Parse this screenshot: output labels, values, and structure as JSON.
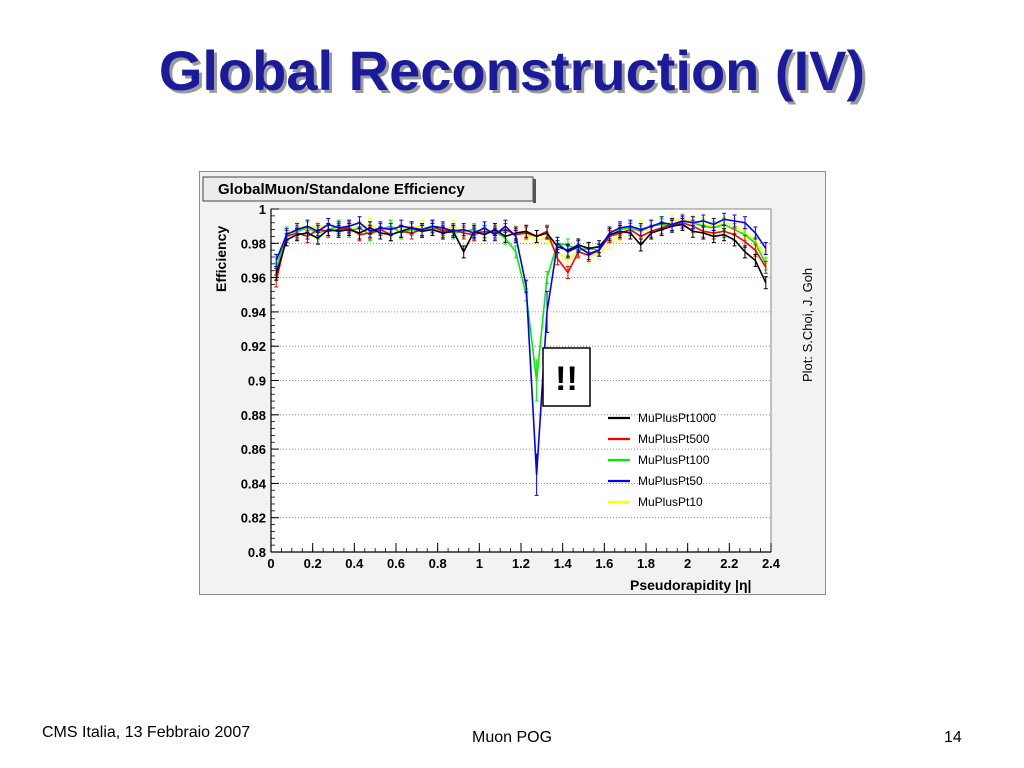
{
  "slide": {
    "title": "Global Reconstruction (IV)",
    "credit": "Plot: S.Choi, J. Goh",
    "footer_left": "CMS Italia, 13 Febbraio 2007",
    "footer_center": "Muon POG",
    "footer_right": "14",
    "annotation": "!!"
  },
  "chart_data": {
    "type": "line",
    "title": "GlobalMuon/Standalone Efficiency",
    "xlabel": "Pseudorapidity |η|",
    "ylabel": "Efficiency",
    "xlim": [
      0,
      2.4
    ],
    "ylim": [
      0.8,
      1.0
    ],
    "x_ticks": [
      "0",
      "0.2",
      "0.4",
      "0.6",
      "0.8",
      "1",
      "1.2",
      "1.4",
      "1.6",
      "1.8",
      "2",
      "2.2",
      "2.4"
    ],
    "y_ticks": [
      "0.8",
      "0.82",
      "0.84",
      "0.86",
      "0.88",
      "0.9",
      "0.92",
      "0.94",
      "0.96",
      "0.98",
      "1"
    ],
    "grid": "horizontal",
    "legend_position": "lower-right",
    "x": [
      0.025,
      0.075,
      0.125,
      0.175,
      0.225,
      0.275,
      0.325,
      0.375,
      0.425,
      0.475,
      0.525,
      0.575,
      0.625,
      0.675,
      0.725,
      0.775,
      0.825,
      0.875,
      0.925,
      0.975,
      1.025,
      1.075,
      1.125,
      1.175,
      1.225,
      1.275,
      1.325,
      1.375,
      1.425,
      1.475,
      1.525,
      1.575,
      1.625,
      1.675,
      1.725,
      1.775,
      1.825,
      1.875,
      1.925,
      1.975,
      2.025,
      2.075,
      2.125,
      2.175,
      2.225,
      2.275,
      2.325,
      2.375
    ],
    "series": [
      {
        "name": "MuPlusPt1000",
        "color": "#000000",
        "values": [
          0.962,
          0.982,
          0.985,
          0.986,
          0.983,
          0.988,
          0.987,
          0.988,
          0.986,
          0.989,
          0.986,
          0.985,
          0.987,
          0.989,
          0.987,
          0.988,
          0.986,
          0.987,
          0.975,
          0.987,
          0.985,
          0.988,
          0.984,
          0.986,
          0.987,
          0.984,
          0.986,
          0.978,
          0.976,
          0.979,
          0.977,
          0.978,
          0.985,
          0.987,
          0.986,
          0.979,
          0.986,
          0.988,
          0.99,
          0.991,
          0.987,
          0.986,
          0.984,
          0.985,
          0.982,
          0.975,
          0.97,
          0.957
        ]
      },
      {
        "name": "MuPlusPt500",
        "color": "#ff0000",
        "values": [
          0.958,
          0.984,
          0.986,
          0.984,
          0.988,
          0.987,
          0.988,
          0.989,
          0.985,
          0.986,
          0.988,
          0.985,
          0.987,
          0.986,
          0.988,
          0.99,
          0.987,
          0.988,
          0.986,
          0.985,
          0.987,
          0.986,
          0.988,
          0.985,
          0.986,
          0.984,
          0.987,
          0.971,
          0.963,
          0.975,
          0.973,
          0.976,
          0.984,
          0.986,
          0.988,
          0.984,
          0.987,
          0.989,
          0.991,
          0.992,
          0.99,
          0.987,
          0.986,
          0.987,
          0.985,
          0.981,
          0.976,
          0.966
        ]
      },
      {
        "name": "MuPlusPt100",
        "color": "#00ee00",
        "values": [
          0.965,
          0.986,
          0.987,
          0.989,
          0.986,
          0.988,
          0.99,
          0.987,
          0.989,
          0.985,
          0.988,
          0.99,
          0.986,
          0.988,
          0.987,
          0.989,
          0.988,
          0.986,
          0.987,
          0.988,
          0.986,
          0.987,
          0.983,
          0.975,
          0.95,
          0.9,
          0.96,
          0.98,
          0.979,
          0.976,
          0.977,
          0.976,
          0.984,
          0.988,
          0.989,
          0.987,
          0.99,
          0.991,
          0.99,
          0.993,
          0.992,
          0.99,
          0.989,
          0.991,
          0.988,
          0.985,
          0.98,
          0.968
        ]
      },
      {
        "name": "MuPlusPt50",
        "color": "#0000ff",
        "values": [
          0.97,
          0.985,
          0.988,
          0.99,
          0.987,
          0.991,
          0.989,
          0.99,
          0.992,
          0.987,
          0.989,
          0.988,
          0.99,
          0.989,
          0.988,
          0.99,
          0.989,
          0.987,
          0.988,
          0.986,
          0.989,
          0.985,
          0.99,
          0.984,
          0.955,
          0.845,
          0.94,
          0.98,
          0.975,
          0.978,
          0.974,
          0.976,
          0.986,
          0.989,
          0.99,
          0.988,
          0.99,
          0.992,
          0.991,
          0.993,
          0.992,
          0.993,
          0.991,
          0.994,
          0.993,
          0.992,
          0.986,
          0.977
        ]
      },
      {
        "name": "MuPlusPt10",
        "color": "#ffff00",
        "values": [
          0.963,
          0.984,
          0.989,
          0.99,
          0.989,
          0.991,
          0.988,
          0.99,
          0.988,
          0.991,
          0.987,
          0.99,
          0.988,
          0.989,
          0.99,
          0.988,
          0.987,
          0.99,
          0.986,
          0.985,
          0.988,
          0.986,
          0.988,
          0.987,
          0.985,
          0.982,
          0.983,
          0.975,
          0.97,
          0.976,
          0.972,
          0.974,
          0.98,
          0.985,
          0.987,
          0.99,
          0.986,
          0.989,
          0.993,
          0.994,
          0.993,
          0.991,
          0.99,
          0.992,
          0.991,
          0.986,
          0.982,
          0.972
        ]
      }
    ]
  }
}
